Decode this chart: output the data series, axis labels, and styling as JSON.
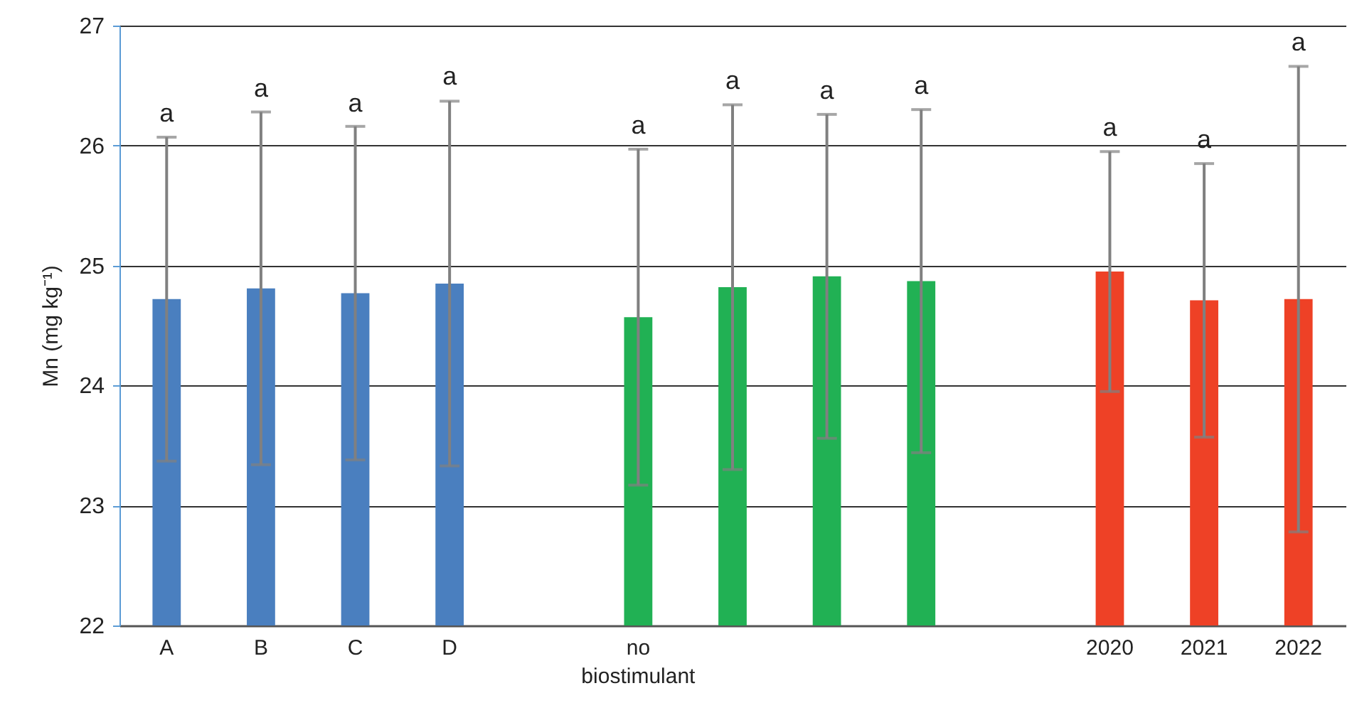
{
  "chart_data": {
    "type": "bar",
    "ylabel": "Mn (mg kg⁻¹)",
    "categories": [
      "A",
      "B",
      "C",
      "D",
      null,
      "no biostimulant",
      null,
      null,
      null,
      null,
      "2020",
      "2021",
      "2022"
    ],
    "values": [
      24.72,
      24.81,
      24.77,
      24.85,
      null,
      24.57,
      24.82,
      24.91,
      24.87,
      null,
      24.95,
      24.71,
      24.72
    ],
    "errors": [
      1.35,
      1.47,
      1.39,
      1.52,
      null,
      1.4,
      1.52,
      1.35,
      1.43,
      null,
      1.0,
      1.14,
      1.94
    ],
    "colors": [
      "#4a7fbf",
      "#4a7fbf",
      "#4a7fbf",
      "#4a7fbf",
      null,
      "#21b154",
      "#21b154",
      "#21b154",
      "#21b154",
      null,
      "#ee4126",
      "#ee4126",
      "#ee4126"
    ],
    "annotations": [
      {
        "text": "a",
        "x": "A",
        "y": 26.07
      },
      {
        "text": "a",
        "x": "B",
        "y": 26.28
      },
      {
        "text": "a",
        "x": "C",
        "y": 26.15
      },
      {
        "text": "a",
        "x": "D",
        "y": 26.38
      },
      {
        "text": "a",
        "x": "no biostimulant",
        "y": 25.97
      },
      {
        "text": "a",
        "y": 26.34
      },
      {
        "text": "a",
        "y": 26.26
      },
      {
        "text": "a",
        "y": 26.3
      },
      {
        "text": "a",
        "x": "2020",
        "y": 25.95
      },
      {
        "text": "a",
        "x": "2021",
        "y": 25.85
      },
      {
        "text": "a",
        "x": "2022",
        "y": 26.66
      }
    ],
    "ylim": [
      22,
      27
    ],
    "yticks": [
      22,
      23,
      24,
      25,
      26,
      27
    ],
    "grid": "y"
  }
}
